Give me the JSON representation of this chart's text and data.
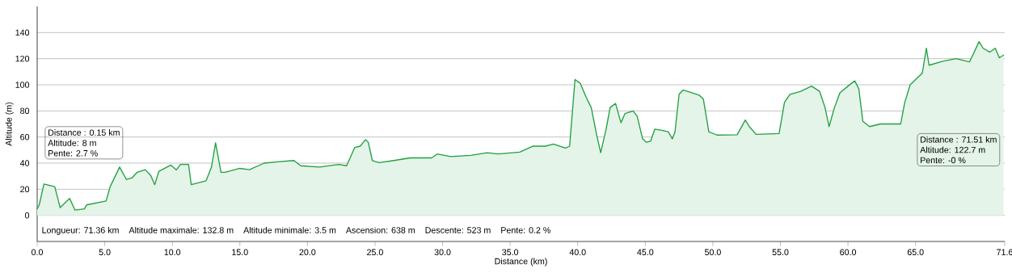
{
  "chart_data": {
    "type": "area",
    "xlabel": "Distance (km)",
    "ylabel": "Altitude (m)",
    "xlim": [
      0,
      71.6
    ],
    "ylim": [
      -20,
      160
    ],
    "xticks": [
      {
        "value": 0,
        "label": "0.0"
      },
      {
        "value": 5,
        "label": "5.0"
      },
      {
        "value": 10,
        "label": "10.0"
      },
      {
        "value": 15,
        "label": "15.0"
      },
      {
        "value": 20,
        "label": "20.0"
      },
      {
        "value": 25,
        "label": "25.0"
      },
      {
        "value": 30,
        "label": "30.0"
      },
      {
        "value": 35,
        "label": "35.0"
      },
      {
        "value": 40,
        "label": "40.0"
      },
      {
        "value": 45,
        "label": "45.0"
      },
      {
        "value": 50,
        "label": "50.0"
      },
      {
        "value": 55,
        "label": "55.0"
      },
      {
        "value": 60,
        "label": "60.0"
      },
      {
        "value": 65,
        "label": "65.0"
      },
      71.6
    ],
    "yticks": [
      0,
      20,
      40,
      60,
      80,
      100,
      120,
      140
    ],
    "grid": "y",
    "marker": "none",
    "line_style": "solid",
    "series": [
      {
        "color": "#1fa040",
        "x": [
          0,
          0.15,
          0.5,
          1.3,
          1.7,
          2.4,
          2.8,
          3.5,
          3.65,
          5.1,
          5.4,
          6.1,
          6.6,
          7.0,
          7.4,
          8.0,
          8.4,
          8.7,
          9.0,
          9.9,
          10.3,
          10.6,
          11.2,
          11.4,
          12.5,
          12.9,
          13.2,
          13.6,
          13.9,
          15.0,
          15.7,
          16.8,
          17.8,
          19.0,
          19.5,
          20.9,
          22.3,
          22.9,
          23.5,
          23.9,
          24.3,
          24.5,
          24.8,
          25.3,
          26.4,
          27.6,
          29.2,
          29.6,
          30.6,
          32.1,
          33.3,
          34.1,
          35.7,
          36.7,
          37.6,
          38.2,
          39.1,
          39.4,
          39.8,
          40.2,
          40.6,
          41.0,
          41.4,
          41.7,
          42.1,
          42.4,
          42.8,
          43.2,
          43.5,
          44.1,
          44.4,
          44.8,
          45.1,
          45.4,
          45.7,
          46.3,
          46.7,
          47.0,
          47.2,
          47.5,
          47.8,
          48.4,
          49.0,
          49.3,
          49.7,
          50.3,
          51.8,
          52.4,
          52.7,
          53.2,
          54.9,
          55.3,
          55.7,
          56.5,
          57.3,
          57.9,
          58.3,
          58.6,
          59.0,
          59.4,
          60.0,
          60.5,
          60.8,
          61.1,
          61.6,
          62.4,
          63.4,
          63.9,
          64.2,
          64.6,
          65.5,
          65.8,
          66.0,
          67.0,
          68.0,
          69.0,
          69.7,
          70.0,
          70.5,
          70.9,
          71.2,
          71.51
        ],
        "values": [
          5,
          8,
          24,
          22,
          6,
          13,
          4,
          5,
          8,
          11,
          22,
          37,
          27.5,
          28.6,
          33,
          35,
          30.6,
          23.5,
          33.7,
          38.5,
          34.8,
          39,
          39,
          23.5,
          26.5,
          37,
          55.5,
          33,
          33,
          36,
          35,
          40,
          41,
          42,
          38,
          37,
          39,
          38,
          52,
          53,
          58,
          56,
          42,
          40.4,
          42,
          44,
          44,
          47,
          45,
          46,
          48,
          47,
          48.4,
          53,
          53,
          54.6,
          51.5,
          53,
          104,
          101,
          91,
          82.6,
          61.7,
          48,
          66,
          82.6,
          85.7,
          71,
          78,
          80,
          76,
          58.6,
          56,
          57,
          66,
          65,
          64,
          58.6,
          64,
          92.7,
          96,
          94,
          92,
          89,
          64,
          61.5,
          61.7,
          73,
          68,
          62,
          62.7,
          86.5,
          92.7,
          95,
          99,
          95,
          82.6,
          68,
          82.6,
          93.8,
          99,
          103,
          97,
          72,
          68,
          70,
          70,
          70,
          86.5,
          100,
          109,
          128,
          115,
          118,
          120,
          117.6,
          133,
          128,
          125,
          128,
          120.7,
          122.7
        ]
      }
    ],
    "annotations": [
      "Distance : 0.15 km",
      "Altitude: 8 m",
      "Pente: 2.7 %",
      "Distance : 71.51 km",
      "Altitude: 122.7 m",
      "Pente: -0 %",
      "Longueur: 71.36 km",
      "Altitude maximale: 132.8 m",
      "Altitude minimale: 3.5 m",
      "Ascension: 638 m",
      "Descente: 523 m",
      "Pente: 0.2 %"
    ]
  }
}
